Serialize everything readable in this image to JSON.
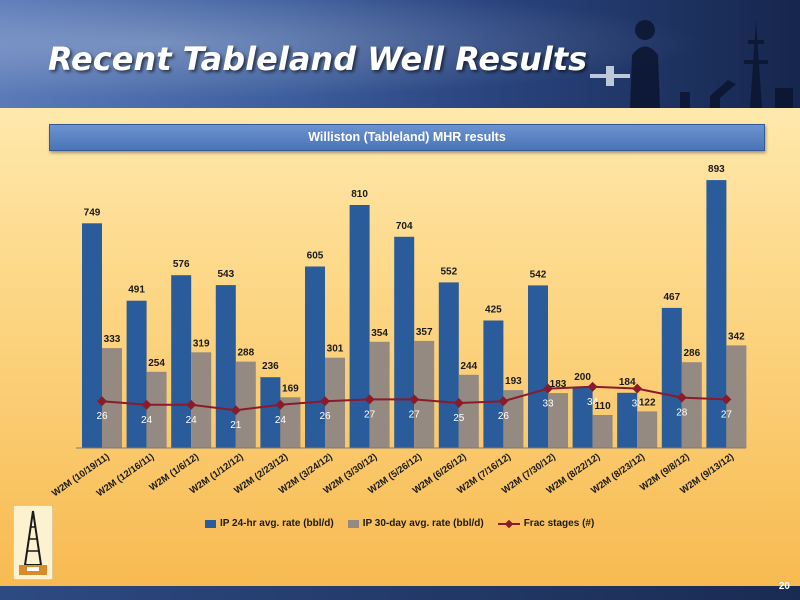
{
  "slide": {
    "title": "Recent Tableland Well Results",
    "subtitle": "Williston (Tableland) MHR results",
    "page_number": "20"
  },
  "colors": {
    "ip24": "#2a5b9b",
    "ip30": "#948a82",
    "frac": "#8b1a2a",
    "header": "#3e5f9e"
  },
  "chart_data": {
    "type": "bar",
    "title": "Williston (Tableland) MHR results",
    "categories": [
      "W2M (10/19/11)",
      "W2M (12/16/11)",
      "W2M (1/6/12)",
      "W2M (1/12/12)",
      "W2M (2/23/12)",
      "W2M (3/24/12)",
      "W2M (3/30/12)",
      "W2M (5/26/12)",
      "W2M (6/26/12)",
      "W2M (7/16/12)",
      "W2M (7/30/12)",
      "W2M (8/22/12)",
      "W2M (8/23/12)",
      "W2M (9/8/12)",
      "W2M (9/13/12)"
    ],
    "series": [
      {
        "name": "IP 24-hr avg. rate (bbl/d)",
        "type": "bar",
        "values": [
          749,
          491,
          576,
          543,
          236,
          605,
          810,
          704,
          552,
          425,
          542,
          200,
          184,
          467,
          893
        ]
      },
      {
        "name": "IP 30-day avg. rate (bbl/d)",
        "type": "bar",
        "values": [
          333,
          254,
          319,
          288,
          169,
          301,
          354,
          357,
          244,
          193,
          183,
          110,
          122,
          286,
          342
        ]
      },
      {
        "name": "Frac stages (#)",
        "type": "line",
        "axis": "secondary",
        "values": [
          26,
          24,
          24,
          21,
          24,
          26,
          27,
          27,
          25,
          26,
          33,
          34,
          33,
          28,
          27
        ]
      }
    ],
    "ylim": [
      0,
      1000
    ],
    "y2lim": [
      0,
      80
    ],
    "grid": false,
    "legend": "bottom"
  }
}
